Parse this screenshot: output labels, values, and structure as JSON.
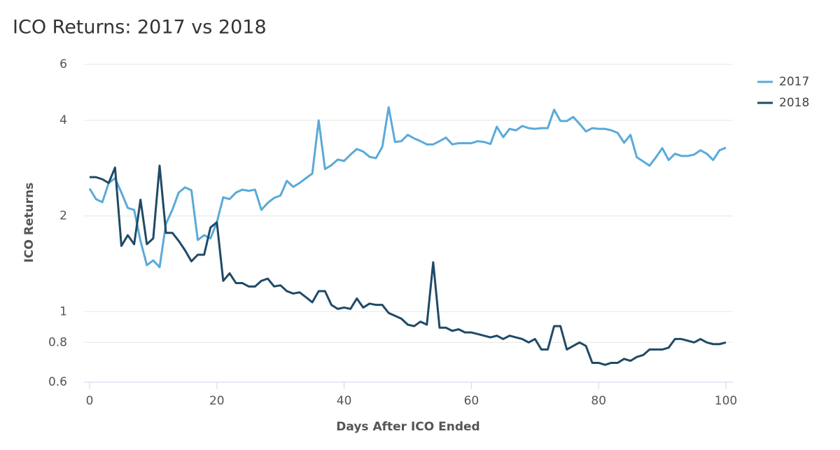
{
  "chart_data": {
    "type": "line",
    "title": "ICO Returns: 2017 vs 2018",
    "x_label": "Days After ICO Ended",
    "y_label": "ICO Returns",
    "x": [
      0,
      1,
      2,
      3,
      4,
      5,
      6,
      7,
      8,
      9,
      10,
      11,
      12,
      13,
      14,
      15,
      16,
      17,
      18,
      19,
      20,
      21,
      22,
      23,
      24,
      25,
      26,
      27,
      28,
      29,
      30,
      31,
      32,
      33,
      34,
      35,
      36,
      37,
      38,
      39,
      40,
      41,
      42,
      43,
      44,
      45,
      46,
      47,
      48,
      49,
      50,
      51,
      52,
      53,
      54,
      55,
      56,
      57,
      58,
      59,
      60,
      61,
      62,
      63,
      64,
      65,
      66,
      67,
      68,
      69,
      70,
      71,
      72,
      73,
      74,
      75,
      76,
      77,
      78,
      79,
      80,
      81,
      82,
      83,
      84,
      85,
      86,
      87,
      88,
      89,
      90,
      91,
      92,
      93,
      94,
      95,
      96,
      97,
      98,
      99,
      100
    ],
    "series": [
      {
        "name": "2017",
        "color": "#5aaad8",
        "values": [
          2.44,
          2.26,
          2.21,
          2.54,
          2.63,
          2.37,
          2.12,
          2.09,
          1.67,
          1.4,
          1.45,
          1.38,
          1.89,
          2.09,
          2.37,
          2.46,
          2.41,
          1.68,
          1.74,
          1.7,
          1.91,
          2.29,
          2.26,
          2.37,
          2.42,
          2.4,
          2.42,
          2.09,
          2.2,
          2.28,
          2.32,
          2.58,
          2.47,
          2.54,
          2.63,
          2.72,
          4.0,
          2.81,
          2.89,
          3.01,
          2.98,
          3.12,
          3.25,
          3.19,
          3.07,
          3.04,
          3.3,
          4.4,
          3.42,
          3.44,
          3.6,
          3.51,
          3.44,
          3.36,
          3.36,
          3.44,
          3.53,
          3.36,
          3.39,
          3.39,
          3.39,
          3.44,
          3.42,
          3.37,
          3.82,
          3.54,
          3.76,
          3.72,
          3.84,
          3.78,
          3.76,
          3.78,
          3.78,
          4.32,
          3.98,
          3.98,
          4.1,
          3.9,
          3.69,
          3.78,
          3.76,
          3.76,
          3.72,
          3.65,
          3.4,
          3.6,
          3.06,
          2.97,
          2.88,
          3.06,
          3.27,
          3.0,
          3.14,
          3.09,
          3.09,
          3.12,
          3.22,
          3.14,
          3.0,
          3.22,
          3.28
        ]
      },
      {
        "name": "2018",
        "color": "#1f4a66",
        "values": [
          2.65,
          2.65,
          2.61,
          2.54,
          2.84,
          1.61,
          1.74,
          1.63,
          2.25,
          1.63,
          1.7,
          2.88,
          1.77,
          1.77,
          1.67,
          1.56,
          1.44,
          1.51,
          1.51,
          1.84,
          1.91,
          1.25,
          1.32,
          1.23,
          1.23,
          1.2,
          1.2,
          1.25,
          1.27,
          1.2,
          1.21,
          1.16,
          1.14,
          1.15,
          1.11,
          1.07,
          1.16,
          1.16,
          1.05,
          1.02,
          1.03,
          1.02,
          1.1,
          1.03,
          1.06,
          1.05,
          1.05,
          0.99,
          0.97,
          0.95,
          0.91,
          0.9,
          0.93,
          0.91,
          1.43,
          0.89,
          0.89,
          0.87,
          0.88,
          0.86,
          0.86,
          0.85,
          0.84,
          0.83,
          0.84,
          0.82,
          0.84,
          0.83,
          0.82,
          0.8,
          0.82,
          0.76,
          0.76,
          0.9,
          0.9,
          0.76,
          0.78,
          0.8,
          0.78,
          0.69,
          0.69,
          0.68,
          0.69,
          0.69,
          0.71,
          0.7,
          0.72,
          0.73,
          0.76,
          0.76,
          0.76,
          0.77,
          0.82,
          0.82,
          0.81,
          0.8,
          0.82,
          0.8,
          0.79,
          0.79,
          0.8
        ]
      }
    ],
    "xlim": [
      0,
      100
    ],
    "xticks": [
      0,
      20,
      40,
      60,
      80,
      100
    ],
    "ylim": [
      0.6,
      6
    ],
    "yticks": [
      0.6,
      0.8,
      1,
      2,
      4,
      6
    ],
    "y_scale": "log",
    "grid": true,
    "legend": "top-right"
  }
}
